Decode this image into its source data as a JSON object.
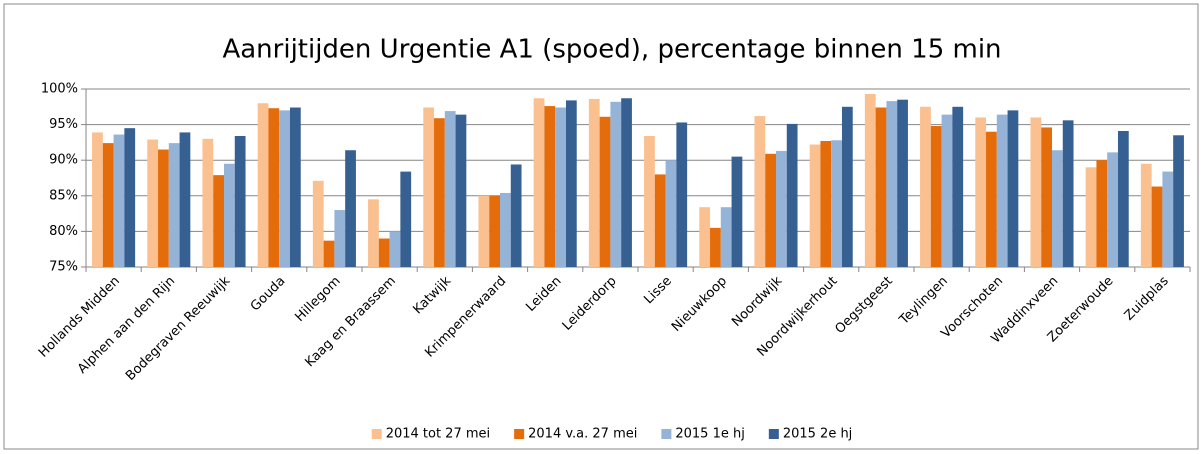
{
  "chart_data": {
    "type": "bar",
    "title": "Aanrijtijden Urgentie A1 (spoed), percentage binnen 15 min",
    "categories": [
      "Hollands Midden",
      "Alphen aan den Rijn",
      "Bodegraven Reeuwijk",
      "Gouda",
      "Hillegom",
      "Kaag en Braassem",
      "Katwijk",
      "Krimpenerwaard",
      "Leiden",
      "Leiderdorp",
      "Lisse",
      "Nieuwkoop",
      "Noordwijk",
      "Noordwijkerhout",
      "Oegstgeest",
      "Teylingen",
      "Voorschoten",
      "Waddinxveen",
      "Zoeterwoude",
      "Zuidplas"
    ],
    "series": [
      {
        "name": "2014 tot 27 mei",
        "color": "#fac090",
        "values": [
          93.9,
          92.9,
          93.0,
          98.0,
          87.1,
          84.5,
          97.4,
          85.0,
          98.7,
          98.6,
          93.4,
          83.4,
          96.2,
          92.2,
          99.3,
          97.5,
          96.0,
          96.0,
          89.0,
          89.5
        ]
      },
      {
        "name": "2014 v.a. 27 mei",
        "color": "#e46c0a",
        "values": [
          92.4,
          91.5,
          87.9,
          97.3,
          78.7,
          79.0,
          95.9,
          85.0,
          97.6,
          96.1,
          88.0,
          80.5,
          90.9,
          92.7,
          97.4,
          94.8,
          94.0,
          94.6,
          90.0,
          86.3
        ]
      },
      {
        "name": "2015 1e hj",
        "color": "#95b3d7",
        "values": [
          93.6,
          92.4,
          89.5,
          97.0,
          83.0,
          80.0,
          96.9,
          85.4,
          97.4,
          98.2,
          90.0,
          83.4,
          91.3,
          92.8,
          98.3,
          96.4,
          96.4,
          91.4,
          91.1,
          88.4
        ]
      },
      {
        "name": "2015 2e hj",
        "color": "#376092",
        "values": [
          94.5,
          93.9,
          93.4,
          97.4,
          91.4,
          88.4,
          96.4,
          89.4,
          98.4,
          98.7,
          95.3,
          90.5,
          95.1,
          97.5,
          98.5,
          97.5,
          97.0,
          95.6,
          94.1,
          93.5
        ]
      }
    ],
    "ylim": [
      75,
      100
    ],
    "yticks": [
      {
        "value": 75,
        "label": "75%"
      },
      {
        "value": 80,
        "label": "80%"
      },
      {
        "value": 85,
        "label": "85%"
      },
      {
        "value": 90,
        "label": "90%"
      },
      {
        "value": 95,
        "label": "95%"
      },
      {
        "value": 100,
        "label": "100%"
      }
    ],
    "grid": true,
    "legend": "bottom"
  }
}
